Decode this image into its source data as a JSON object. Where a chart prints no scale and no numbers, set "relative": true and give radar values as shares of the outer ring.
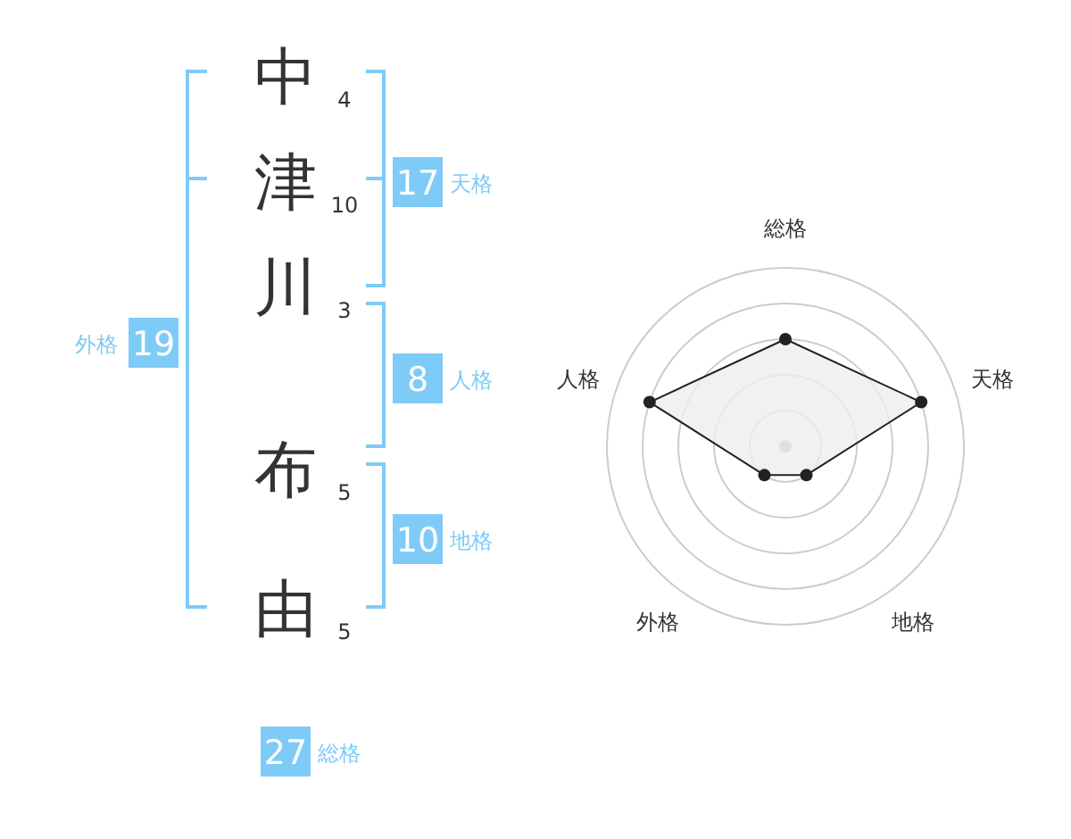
{
  "chart_data": [
    {
      "type": "other",
      "categories": [
        "中",
        "津",
        "川",
        "布",
        "由"
      ],
      "values": [
        4,
        10,
        3,
        5,
        5
      ],
      "data_labels": true,
      "annotations": [
        "17",
        "天格",
        "8",
        "人格",
        "10",
        "地格",
        "19",
        "外格",
        "27",
        "総格"
      ]
    },
    {
      "type": "radar",
      "categories": [
        "総格",
        "天格",
        "地格",
        "外格",
        "人格"
      ],
      "relative": true,
      "grid": true,
      "marker": "circle",
      "series": [
        {
          "color": "#222222",
          "values": [
            0.6,
            0.8,
            0.2,
            0.2,
            0.8
          ]
        }
      ]
    }
  ]
}
